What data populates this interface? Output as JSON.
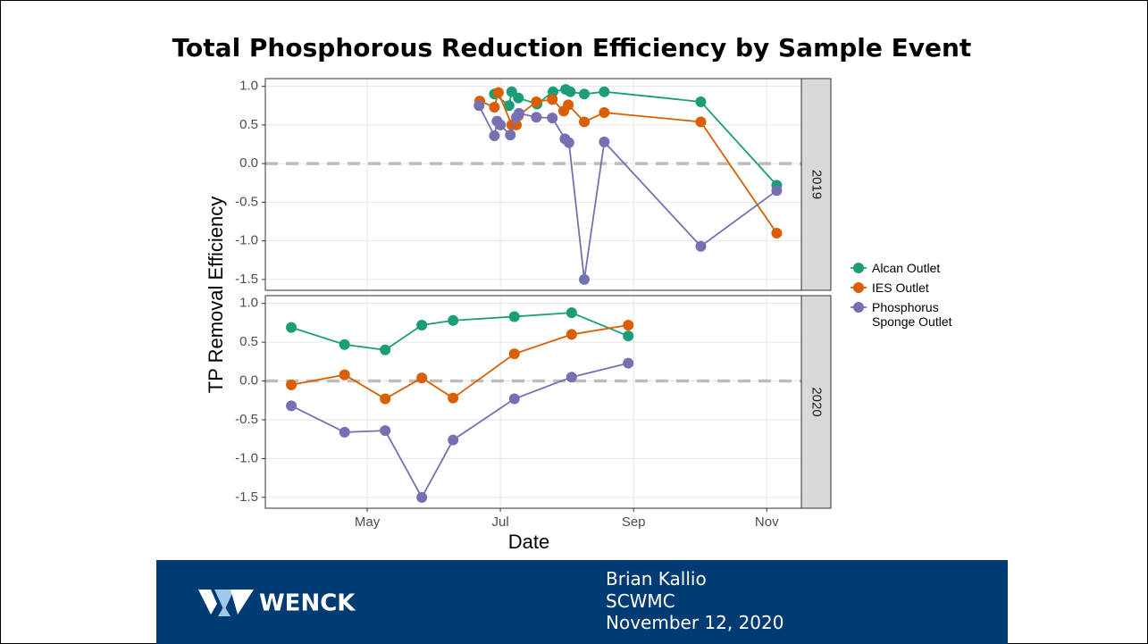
{
  "chart_data": {
    "type": "line",
    "title": "Total Phosphorous Reduction Efficiency by Sample Event",
    "x_label": "Date",
    "y_label": "TP Removal Efficiency",
    "xlim": [
      3.47,
      11.52
    ],
    "xticks": [
      {
        "value": 5,
        "label": "May"
      },
      {
        "value": 7,
        "label": "Jul"
      },
      {
        "value": 9,
        "label": "Sep"
      },
      {
        "value": 11,
        "label": "Nov"
      }
    ],
    "ylim": [
      -1.64,
      1.1
    ],
    "yticks": [
      {
        "value": 1,
        "label": "1.0"
      },
      0.5,
      {
        "value": 0,
        "label": "0.0"
      },
      -0.5,
      {
        "value": -1,
        "label": "-1.0"
      },
      -1.5
    ],
    "reference_line": 0,
    "grid": true,
    "legend_position": "right",
    "legend": [
      {
        "name": "Alcan Outlet",
        "color": "#1b9e77"
      },
      {
        "name": "IES Outlet",
        "color": "#d95f02"
      },
      {
        "name": "Phosphorus Sponge Outlet",
        "color": "#7570b3"
      }
    ],
    "panels": [
      {
        "label": "2019",
        "series": [
          {
            "x": [
              6.91,
              7.13,
              7.17,
              7.27,
              7.55,
              7.79,
              7.98,
              8.05,
              8.26,
              8.56,
              10.01,
              11.15
            ],
            "values": [
              0.9,
              0.75,
              0.93,
              0.85,
              0.77,
              0.93,
              0.96,
              0.93,
              0.9,
              0.93,
              0.8,
              -0.28
            ]
          },
          {
            "x": [
              6.69,
              6.91,
              6.97,
              7.17,
              7.24,
              7.27,
              7.54,
              7.78,
              7.95,
              8.02,
              8.26,
              8.56,
              10.01,
              11.15
            ],
            "values": [
              0.81,
              0.73,
              0.92,
              0.5,
              0.5,
              0.62,
              0.8,
              0.83,
              0.68,
              0.76,
              0.54,
              0.66,
              0.54,
              -0.9
            ]
          },
          {
            "x": [
              6.68,
              6.91,
              6.95,
              7.0,
              7.15,
              7.24,
              7.28,
              7.54,
              7.78,
              7.97,
              8.03,
              8.26,
              8.56,
              10.01,
              11.15
            ],
            "values": [
              0.75,
              0.36,
              0.55,
              0.5,
              0.37,
              0.6,
              0.65,
              0.6,
              0.59,
              0.32,
              0.27,
              -1.5,
              0.28,
              -1.07,
              -0.35
            ]
          }
        ]
      },
      {
        "label": "2020",
        "series": [
          {
            "x": [
              3.86,
              4.66,
              5.27,
              5.82,
              6.29,
              7.21,
              8.07,
              8.92
            ],
            "values": [
              0.69,
              0.47,
              0.4,
              0.72,
              0.78,
              0.83,
              0.88,
              0.58
            ]
          },
          {
            "x": [
              3.86,
              4.66,
              5.27,
              5.82,
              6.29,
              7.21,
              8.07,
              8.92
            ],
            "values": [
              -0.05,
              0.08,
              -0.23,
              0.04,
              -0.22,
              0.35,
              0.6,
              0.72
            ]
          },
          {
            "x": [
              3.86,
              4.66,
              5.27,
              5.82,
              6.29,
              7.21,
              8.07,
              8.92
            ],
            "values": [
              -0.32,
              -0.66,
              -0.64,
              -1.5,
              -0.76,
              -0.23,
              0.05,
              0.23
            ]
          }
        ]
      }
    ]
  },
  "footer": {
    "logo": "WENCK",
    "lines": [
      "Brian Kallio",
      "SCWMC",
      "November 12, 2020"
    ]
  }
}
